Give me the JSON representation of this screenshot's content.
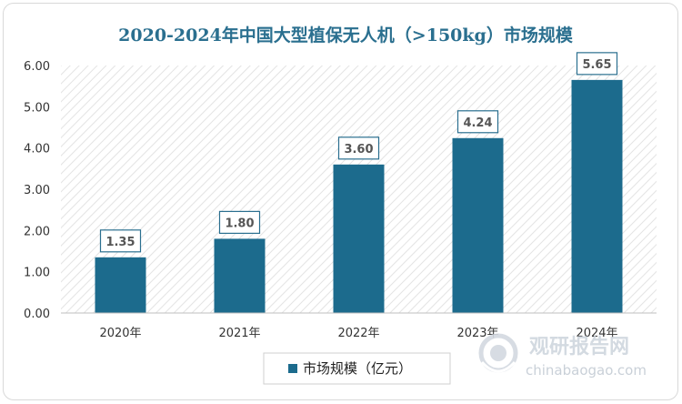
{
  "chart_data": {
    "type": "bar",
    "title": "2020-2024年中国大型植保无人机（>150kg）市场规模",
    "categories": [
      "2020年",
      "2021年",
      "2022年",
      "2023年",
      "2024年"
    ],
    "series": [
      {
        "name": "市场规模（亿元）",
        "values": [
          1.35,
          1.8,
          3.6,
          4.24,
          5.65
        ]
      }
    ],
    "value_labels": [
      "1.35",
      "1.80",
      "3.60",
      "4.24",
      "5.65"
    ],
    "yticks": [
      "0.00",
      "1.00",
      "2.00",
      "3.00",
      "4.00",
      "5.00",
      "6.00"
    ],
    "ylim": [
      0,
      6
    ],
    "grid": false,
    "legend_position": "bottom",
    "bar_color": "#1c6b8d"
  },
  "watermark": {
    "text_cn": "观研报告网",
    "text_en": "chinabaogao.com"
  }
}
